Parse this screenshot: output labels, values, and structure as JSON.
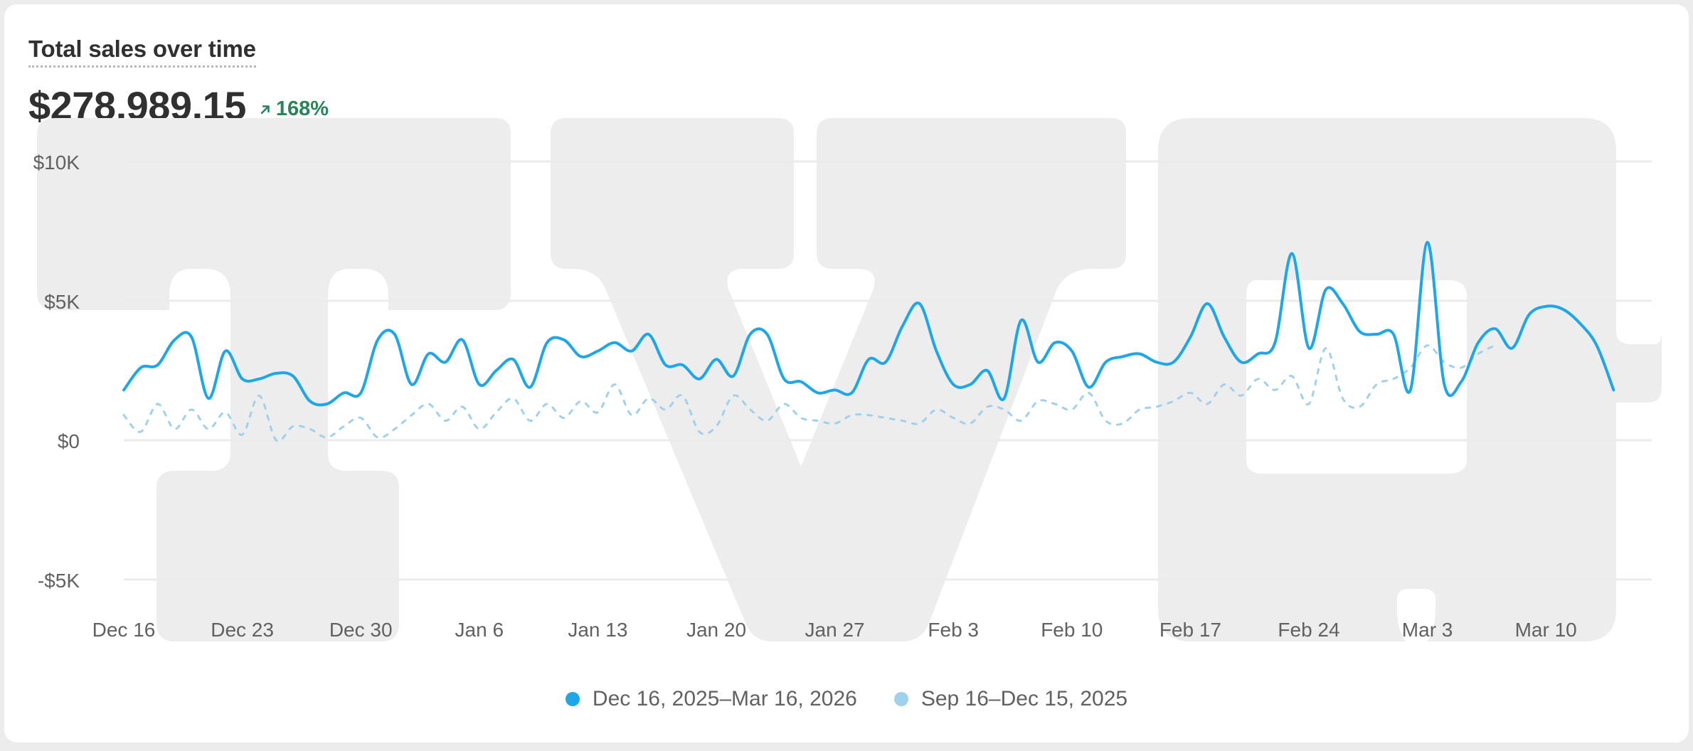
{
  "card": {
    "title": "Total sales over time",
    "total": "$278,989.15",
    "change_pct": "168%",
    "change_direction": "up",
    "accent_color": "#29845a"
  },
  "legend": {
    "current_label": "Dec 16, 2025–Mar 16, 2026",
    "previous_label": "Sep 16–Dec 15, 2025",
    "current_color": "#1ea7e8",
    "previous_color": "#9fd1ef"
  },
  "chart_data": {
    "type": "line",
    "title": "Total sales over time",
    "xlabel": "",
    "ylabel": "",
    "y_ticks": [
      {
        "value": 10000,
        "label": "$10K"
      },
      {
        "value": 5000,
        "label": "$5K"
      },
      {
        "value": 0,
        "label": "$0"
      },
      {
        "value": -5000,
        "label": "-$5K"
      }
    ],
    "ylim": [
      -5000,
      10000
    ],
    "x_ticks": [
      {
        "index": 0,
        "label": "Dec 16"
      },
      {
        "index": 7,
        "label": "Dec 23"
      },
      {
        "index": 14,
        "label": "Dec 30"
      },
      {
        "index": 21,
        "label": "Jan 6"
      },
      {
        "index": 28,
        "label": "Jan 13"
      },
      {
        "index": 35,
        "label": "Jan 20"
      },
      {
        "index": 42,
        "label": "Jan 27"
      },
      {
        "index": 49,
        "label": "Feb 3"
      },
      {
        "index": 56,
        "label": "Feb 10"
      },
      {
        "index": 63,
        "label": "Feb 17"
      },
      {
        "index": 70,
        "label": "Feb 24"
      },
      {
        "index": 77,
        "label": "Mar 3"
      },
      {
        "index": 84,
        "label": "Mar 10"
      }
    ],
    "grid": true,
    "legend_position": "bottom-center",
    "series": [
      {
        "name": "Dec 16, 2025–Mar 16, 2026",
        "style": "solid",
        "color": "#1ea7e8",
        "values": [
          1800,
          2600,
          2700,
          3600,
          3700,
          1500,
          3200,
          2200,
          2200,
          2400,
          2300,
          1400,
          1300,
          1700,
          1700,
          3600,
          3800,
          2000,
          3100,
          2800,
          3600,
          2000,
          2500,
          2900,
          1900,
          3500,
          3600,
          3000,
          3200,
          3500,
          3200,
          3800,
          2700,
          2700,
          2200,
          2900,
          2300,
          3800,
          3800,
          2200,
          2100,
          1700,
          1800,
          1700,
          2900,
          2800,
          4100,
          4900,
          3200,
          2000,
          2000,
          2500,
          1500,
          4300,
          2800,
          3500,
          3200,
          1900,
          2800,
          3000,
          3100,
          2800,
          2800,
          3700,
          4900,
          3700,
          2800,
          3100,
          3500,
          6700,
          3300,
          5400,
          4900,
          3900,
          3800,
          3800,
          1800,
          7100,
          2000,
          2100,
          3500,
          4000,
          3300,
          4500,
          4800,
          4700,
          4200,
          3400,
          1800
        ]
      },
      {
        "name": "Sep 16–Dec 15, 2025",
        "style": "dashed",
        "color": "#9fd1ef",
        "values": [
          900,
          300,
          1300,
          400,
          1100,
          400,
          1000,
          200,
          1600,
          0,
          500,
          400,
          100,
          500,
          800,
          100,
          400,
          900,
          1300,
          700,
          1200,
          400,
          1000,
          1500,
          700,
          1300,
          800,
          1400,
          1000,
          2000,
          900,
          1500,
          1100,
          1600,
          300,
          500,
          1600,
          1100,
          700,
          1300,
          800,
          700,
          600,
          900,
          900,
          800,
          700,
          600,
          1100,
          800,
          600,
          1200,
          1100,
          700,
          1400,
          1300,
          1100,
          1700,
          700,
          600,
          1100,
          1200,
          1400,
          1700,
          1300,
          2000,
          1600,
          2200,
          1800,
          2300,
          1300,
          3300,
          1500,
          1200,
          2000,
          2200,
          2600,
          3400,
          2800,
          2600,
          3100,
          3400
        ]
      }
    ]
  }
}
